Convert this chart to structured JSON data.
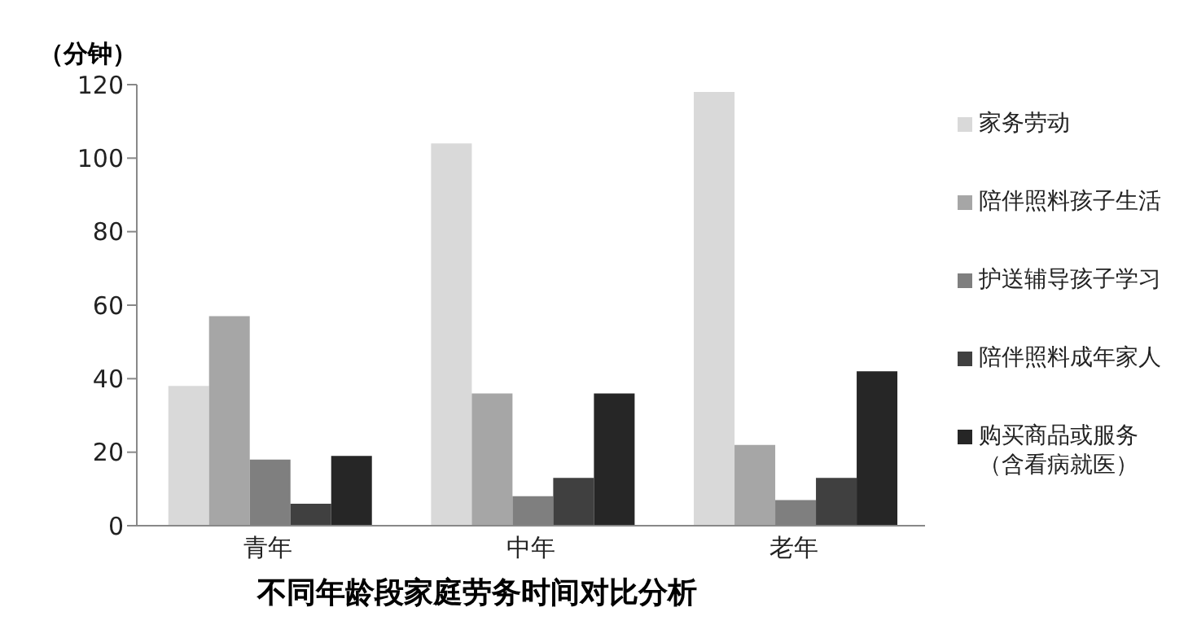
{
  "chart_data": {
    "type": "bar",
    "title": "不同年龄段家庭劳务时间对比分析",
    "ylabel": "（分钟）",
    "categories": [
      "青年",
      "中年",
      "老年"
    ],
    "series": [
      {
        "name": "家务劳动",
        "color": "#d9d9d9",
        "values": [
          38,
          104,
          118
        ]
      },
      {
        "name": "陪伴照料孩子生活",
        "color": "#a6a6a6",
        "values": [
          57,
          36,
          22
        ]
      },
      {
        "name": "护送辅导孩子学习",
        "color": "#7f7f7f",
        "values": [
          18,
          8,
          7
        ]
      },
      {
        "name": "陪伴照料成年家人",
        "color": "#404040",
        "values": [
          6,
          13,
          13
        ]
      },
      {
        "name": "购买商品或服务（含看病就医）",
        "color": "#262626",
        "values": [
          19,
          36,
          42
        ]
      }
    ],
    "ylim": [
      0,
      120
    ],
    "yticks": [
      0,
      20,
      40,
      60,
      80,
      100,
      120
    ],
    "grid": false,
    "legend": "right"
  }
}
